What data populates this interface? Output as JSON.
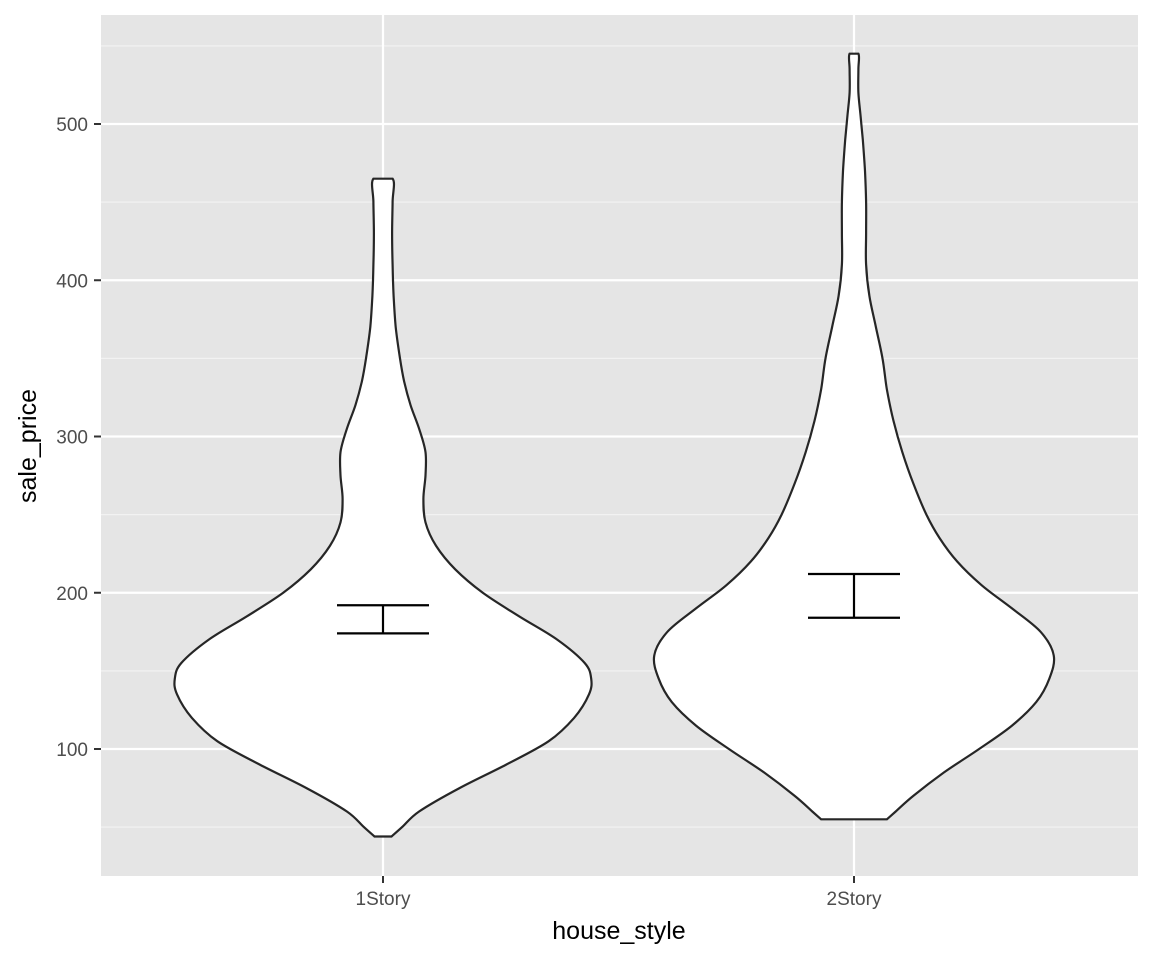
{
  "chart_data": {
    "type": "violin",
    "xlabel": "house_style",
    "ylabel": "sale_price",
    "ylim": [
      20,
      570
    ],
    "yticks": [
      100,
      200,
      300,
      400,
      500
    ],
    "grid": true,
    "categories": [
      "1Story",
      "2Story"
    ],
    "violins": [
      {
        "category": "1Story",
        "min": 44,
        "max": 465,
        "error_bar": [
          174,
          192
        ],
        "density": [
          [
            44,
            0.04
          ],
          [
            50,
            0.09
          ],
          [
            60,
            0.17
          ],
          [
            75,
            0.36
          ],
          [
            90,
            0.58
          ],
          [
            105,
            0.78
          ],
          [
            120,
            0.9
          ],
          [
            135,
            0.97
          ],
          [
            145,
            0.98
          ],
          [
            155,
            0.95
          ],
          [
            170,
            0.82
          ],
          [
            185,
            0.64
          ],
          [
            200,
            0.47
          ],
          [
            215,
            0.34
          ],
          [
            230,
            0.25
          ],
          [
            245,
            0.2
          ],
          [
            260,
            0.19
          ],
          [
            275,
            0.2
          ],
          [
            290,
            0.2
          ],
          [
            305,
            0.17
          ],
          [
            320,
            0.13
          ],
          [
            335,
            0.1
          ],
          [
            350,
            0.08
          ],
          [
            370,
            0.06
          ],
          [
            390,
            0.05
          ],
          [
            410,
            0.045
          ],
          [
            430,
            0.043
          ],
          [
            450,
            0.045
          ],
          [
            465,
            0.045
          ]
        ]
      },
      {
        "category": "2Story",
        "min": 55,
        "max": 545,
        "error_bar": [
          184,
          212
        ],
        "density": [
          [
            55,
            0.15
          ],
          [
            60,
            0.19
          ],
          [
            70,
            0.27
          ],
          [
            85,
            0.41
          ],
          [
            100,
            0.57
          ],
          [
            115,
            0.72
          ],
          [
            130,
            0.83
          ],
          [
            145,
            0.89
          ],
          [
            160,
            0.91
          ],
          [
            175,
            0.85
          ],
          [
            190,
            0.72
          ],
          [
            205,
            0.58
          ],
          [
            220,
            0.47
          ],
          [
            235,
            0.39
          ],
          [
            250,
            0.33
          ],
          [
            270,
            0.27
          ],
          [
            290,
            0.22
          ],
          [
            310,
            0.18
          ],
          [
            330,
            0.15
          ],
          [
            350,
            0.13
          ],
          [
            370,
            0.1
          ],
          [
            390,
            0.07
          ],
          [
            410,
            0.055
          ],
          [
            430,
            0.055
          ],
          [
            450,
            0.055
          ],
          [
            470,
            0.05
          ],
          [
            490,
            0.04
          ],
          [
            505,
            0.03
          ],
          [
            520,
            0.02
          ],
          [
            535,
            0.02
          ],
          [
            545,
            0.02
          ]
        ]
      }
    ]
  }
}
